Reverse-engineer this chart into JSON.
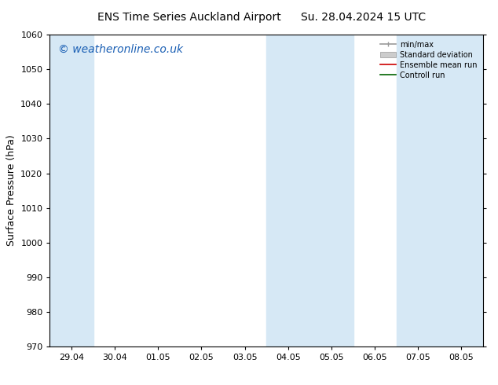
{
  "title_left": "ENS Time Series Auckland Airport",
  "title_right": "Su. 28.04.2024 15 UTC",
  "ylabel": "Surface Pressure (hPa)",
  "ylim": [
    970,
    1060
  ],
  "yticks": [
    970,
    980,
    990,
    1000,
    1010,
    1020,
    1030,
    1040,
    1050,
    1060
  ],
  "xtick_labels": [
    "29.04",
    "30.04",
    "01.05",
    "02.05",
    "03.05",
    "04.05",
    "05.05",
    "06.05",
    "07.05",
    "08.05"
  ],
  "xlim": [
    0,
    9
  ],
  "xtick_positions": [
    0,
    1,
    2,
    3,
    4,
    5,
    6,
    7,
    8,
    9
  ],
  "shaded_bands": [
    {
      "xmin": -0.5,
      "xmax": 0.5
    },
    {
      "xmin": 4.5,
      "xmax": 6.5
    },
    {
      "xmin": 7.5,
      "xmax": 9.5
    }
  ],
  "shade_color": "#d6e8f5",
  "background_color": "#ffffff",
  "watermark": "© weatheronline.co.uk",
  "legend_items": [
    {
      "label": "min/max",
      "color": "#999999",
      "lw": 1.2
    },
    {
      "label": "Standard deviation",
      "color": "#cccccc",
      "lw": 8
    },
    {
      "label": "Ensemble mean run",
      "color": "#cc0000",
      "lw": 1.2
    },
    {
      "label": "Controll run",
      "color": "#006400",
      "lw": 1.2
    }
  ],
  "title_fontsize": 10,
  "tick_fontsize": 8,
  "ylabel_fontsize": 9,
  "watermark_color": "#1a5fb4",
  "watermark_fontsize": 10
}
